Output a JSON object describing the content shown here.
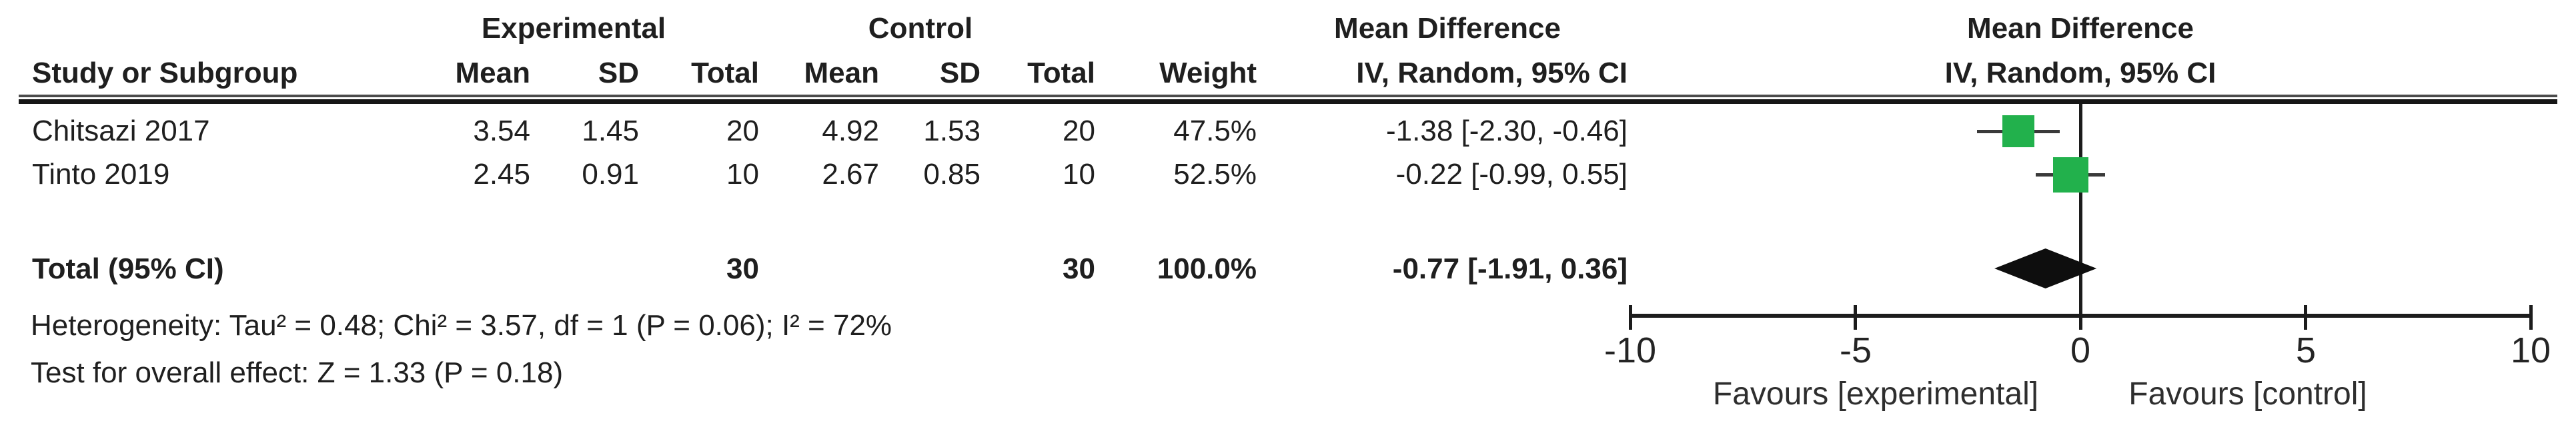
{
  "table": {
    "group_headers": {
      "experimental": "Experimental",
      "control": "Control",
      "mean_difference": "Mean Difference",
      "mean_difference_plot": "Mean Difference"
    },
    "columns": {
      "study": "Study or Subgroup",
      "exp_mean": "Mean",
      "exp_sd": "SD",
      "exp_total": "Total",
      "ctl_mean": "Mean",
      "ctl_sd": "SD",
      "ctl_total": "Total",
      "weight": "Weight",
      "ci": "IV, Random, 95% CI",
      "ci_plot": "IV, Random, 95% CI"
    },
    "rows": [
      {
        "study": "Chitsazi 2017",
        "exp_mean": "3.54",
        "exp_sd": "1.45",
        "exp_total": "20",
        "ctl_mean": "4.92",
        "ctl_sd": "1.53",
        "ctl_total": "20",
        "weight": "47.5%",
        "ci": "-1.38 [-2.30, -0.46]"
      },
      {
        "study": "Tinto 2019",
        "exp_mean": "2.45",
        "exp_sd": "0.91",
        "exp_total": "10",
        "ctl_mean": "2.67",
        "ctl_sd": "0.85",
        "ctl_total": "10",
        "weight": "52.5%",
        "ci": "-0.22 [-0.99, 0.55]"
      }
    ],
    "total_row": {
      "label": "Total (95% CI)",
      "exp_total": "30",
      "ctl_total": "30",
      "weight": "100.0%",
      "ci": "-0.77 [-1.91, 0.36]"
    }
  },
  "footnotes": {
    "heterogeneity": "Heterogeneity: Tau² = 0.48; Chi² = 3.57, df = 1 (P = 0.06); I² = 72%",
    "overall_effect": "Test for overall effect: Z = 1.33 (P = 0.18)"
  },
  "chart_data": {
    "type": "forest",
    "effect_measure": "Mean Difference, IV, Random, 95% CI",
    "xlim": [
      -10,
      10
    ],
    "ticks": [
      -10,
      -5,
      0,
      5,
      10
    ],
    "x_axis_labels": [
      "-10",
      "-5",
      "0",
      "5",
      "10"
    ],
    "favours_left": "Favours [experimental]",
    "favours_right": "Favours [control]",
    "studies": [
      {
        "name": "Chitsazi 2017",
        "md": -1.38,
        "ci_low": -2.3,
        "ci_high": -0.46,
        "weight_pct": 47.5
      },
      {
        "name": "Tinto 2019",
        "md": -0.22,
        "ci_low": -0.99,
        "ci_high": 0.55,
        "weight_pct": 52.5
      }
    ],
    "total": {
      "md": -0.77,
      "ci_low": -1.91,
      "ci_high": 0.36
    },
    "marker_color": "#22b14c",
    "diamond_color": "#0e0e0e",
    "line_color": "#1c1c1c"
  }
}
